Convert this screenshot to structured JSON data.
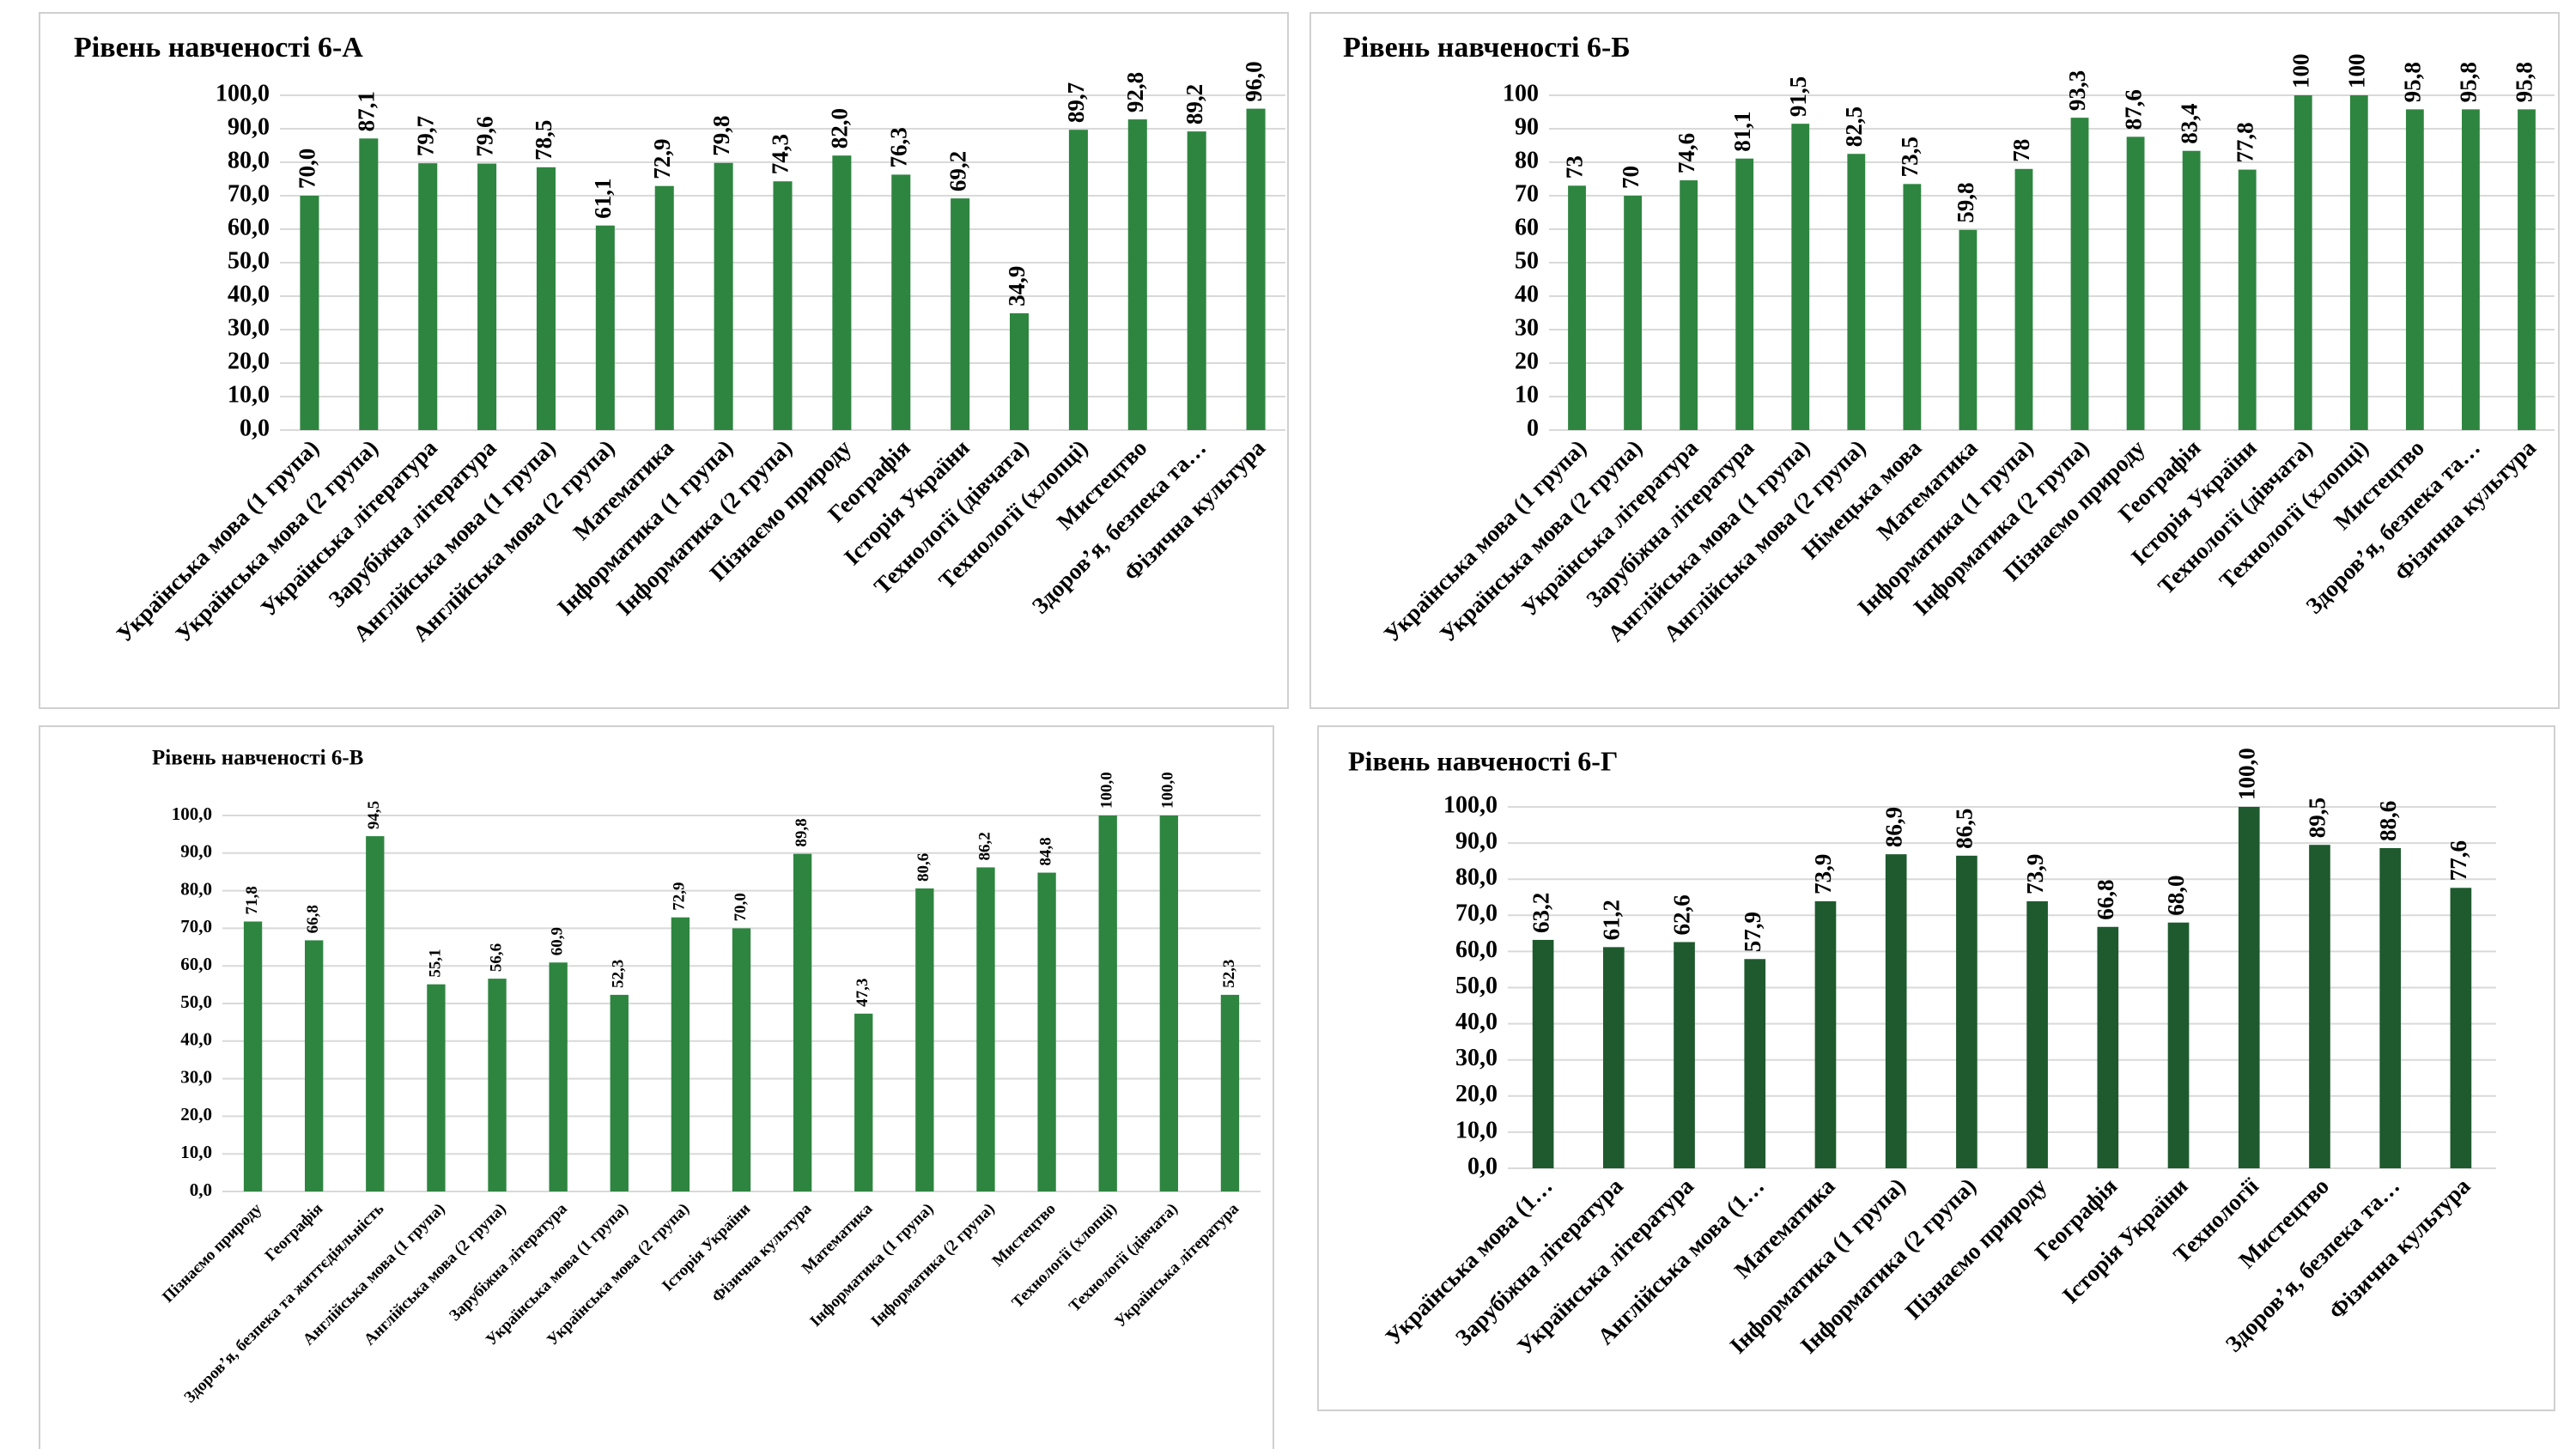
{
  "chart_data": [
    {
      "type": "bar",
      "title": "Рівень навченості 6-А",
      "color": "#2e8540",
      "grid": true,
      "categories": [
        "Українська мова (1 група)",
        "Українська мова (2 група)",
        "Українська література",
        "Зарубіжна література",
        "Англійська мова (1 група)",
        "Англійська мова (2 група)",
        "Математика",
        "Інформатика (1 група)",
        "Інформатика (2 група)",
        "Пізнаємо природу",
        "Географія",
        "Історія України",
        "Технології (дівчата)",
        "Технології (хлопці)",
        "Мистецтво",
        "Здоров’я, безпека та…",
        "Фізична культура"
      ],
      "values": [
        70.0,
        87.1,
        79.7,
        79.6,
        78.5,
        61.1,
        72.9,
        79.8,
        74.3,
        82.0,
        76.3,
        69.2,
        34.9,
        89.7,
        92.8,
        89.2,
        96.0
      ],
      "value_labels": [
        "70,0",
        "87,1",
        "79,7",
        "79,6",
        "78,5",
        "61,1",
        "72,9",
        "79,8",
        "74,3",
        "82,0",
        "76,3",
        "69,2",
        "34,9",
        "89,7",
        "92,8",
        "89,2",
        "96,0"
      ],
      "ylim": [
        0,
        100
      ],
      "yticks": [
        {
          "value": 0,
          "label": "0,0"
        },
        {
          "value": 10,
          "label": "10,0"
        },
        {
          "value": 20,
          "label": "20,0"
        },
        {
          "value": 30,
          "label": "30,0"
        },
        {
          "value": 40,
          "label": "40,0"
        },
        {
          "value": 50,
          "label": "50,0"
        },
        {
          "value": 60,
          "label": "60,0"
        },
        {
          "value": 70,
          "label": "70,0"
        },
        {
          "value": 80,
          "label": "80,0"
        },
        {
          "value": 90,
          "label": "90,0"
        },
        {
          "value": 100,
          "label": "100,0"
        }
      ]
    },
    {
      "type": "bar",
      "title": "Рівень навченості 6-Б",
      "color": "#2e8540",
      "grid": true,
      "categories": [
        "Українська мова (1 група)",
        "Українська мова (2 група)",
        "Українська література",
        "Зарубіжна література",
        "Англійська мова (1 група)",
        "Англійська мова (2 група)",
        "Німецька мова",
        "Математика",
        "Інформатика (1 група)",
        "Інформатика (2 група)",
        "Пізнаємо природу",
        "Географія",
        "Історія України",
        "Технології (дівчата)",
        "Технології (хлопці)",
        "Мистецтво",
        "Здоров’я, безпека та…",
        "Фізична культура"
      ],
      "values": [
        73,
        70,
        74.6,
        81.1,
        91.5,
        82.5,
        73.5,
        59.8,
        78,
        93.3,
        87.6,
        83.4,
        77.8,
        100,
        100,
        95.8,
        95.8,
        95.8
      ],
      "value_labels": [
        "73",
        "70",
        "74,6",
        "81,1",
        "91,5",
        "82,5",
        "73,5",
        "59,8",
        "78",
        "93,3",
        "87,6",
        "83,4",
        "77,8",
        "100",
        "100",
        "95,8",
        "95,8",
        "95,8"
      ],
      "ylim": [
        0,
        100
      ],
      "yticks": [
        0,
        10,
        20,
        30,
        40,
        50,
        60,
        70,
        80,
        90,
        100
      ]
    },
    {
      "type": "bar",
      "title": "Рівень навченості 6-В",
      "color": "#2e8540",
      "grid": true,
      "categories": [
        "Пізнаємо природу",
        "Географія",
        "Здоров’я, безпека та життєдіяльність",
        "Англійська мова (1 група)",
        "Англійська мова (2 група)",
        "Зарубіжна література",
        "Українська мова (1 група)",
        "Українська мова (2 група)",
        "Історія України",
        "Фізична культура",
        "Математика",
        "Інформатика (1 група)",
        "Інформатика (2 група)",
        "Мистецтво",
        "Технології (хлопці)",
        "Технології (дівчата)",
        "Українська література"
      ],
      "values": [
        71.8,
        66.8,
        94.5,
        55.1,
        56.6,
        60.9,
        52.3,
        72.9,
        70.0,
        89.8,
        47.3,
        80.6,
        86.2,
        84.8,
        100.0,
        100.0,
        52.3
      ],
      "value_labels": [
        "71,8",
        "66,8",
        "94,5",
        "55,1",
        "56,6",
        "60,9",
        "52,3",
        "72,9",
        "70,0",
        "89,8",
        "47,3",
        "80,6",
        "86,2",
        "84,8",
        "100,0",
        "100,0",
        "52,3"
      ],
      "ylim": [
        0,
        100
      ],
      "yticks": [
        {
          "value": 0,
          "label": "0,0"
        },
        {
          "value": 10,
          "label": "10,0"
        },
        {
          "value": 20,
          "label": "20,0"
        },
        {
          "value": 30,
          "label": "30,0"
        },
        {
          "value": 40,
          "label": "40,0"
        },
        {
          "value": 50,
          "label": "50,0"
        },
        {
          "value": 60,
          "label": "60,0"
        },
        {
          "value": 70,
          "label": "70,0"
        },
        {
          "value": 80,
          "label": "80,0"
        },
        {
          "value": 90,
          "label": "90,0"
        },
        {
          "value": 100,
          "label": "100,0"
        }
      ]
    },
    {
      "type": "bar",
      "title": "Рівень навченості 6-Г",
      "color": "#1e5a2e",
      "grid": true,
      "categories": [
        "Українська мова (1…",
        "Зарубіжна література",
        "Українська література",
        "Англійська мова (1…",
        "Математика",
        "Інформатика (1 група)",
        "Інформатика (2 група)",
        "Пізнаємо природу",
        "Географія",
        "Історія України",
        "Технології",
        "Мистецтво",
        "Здоров’я, безпека та…",
        "Фізична культура"
      ],
      "values": [
        63.2,
        61.2,
        62.6,
        57.9,
        73.9,
        86.9,
        86.5,
        73.9,
        66.8,
        68.0,
        100.0,
        89.5,
        88.6,
        77.6
      ],
      "value_labels": [
        "63,2",
        "61,2",
        "62,6",
        "57,9",
        "73,9",
        "86,9",
        "86,5",
        "73,9",
        "66,8",
        "68,0",
        "100,0",
        "89,5",
        "88,6",
        "77,6"
      ],
      "ylim": [
        0,
        100
      ],
      "yticks": [
        {
          "value": 0,
          "label": "0,0"
        },
        {
          "value": 10,
          "label": "10,0"
        },
        {
          "value": 20,
          "label": "20,0"
        },
        {
          "value": 30,
          "label": "30,0"
        },
        {
          "value": 40,
          "label": "40,0"
        },
        {
          "value": 50,
          "label": "50,0"
        },
        {
          "value": 60,
          "label": "60,0"
        },
        {
          "value": 70,
          "label": "70,0"
        },
        {
          "value": 80,
          "label": "80,0"
        },
        {
          "value": 90,
          "label": "90,0"
        },
        {
          "value": 100,
          "label": "100,0"
        }
      ]
    }
  ]
}
